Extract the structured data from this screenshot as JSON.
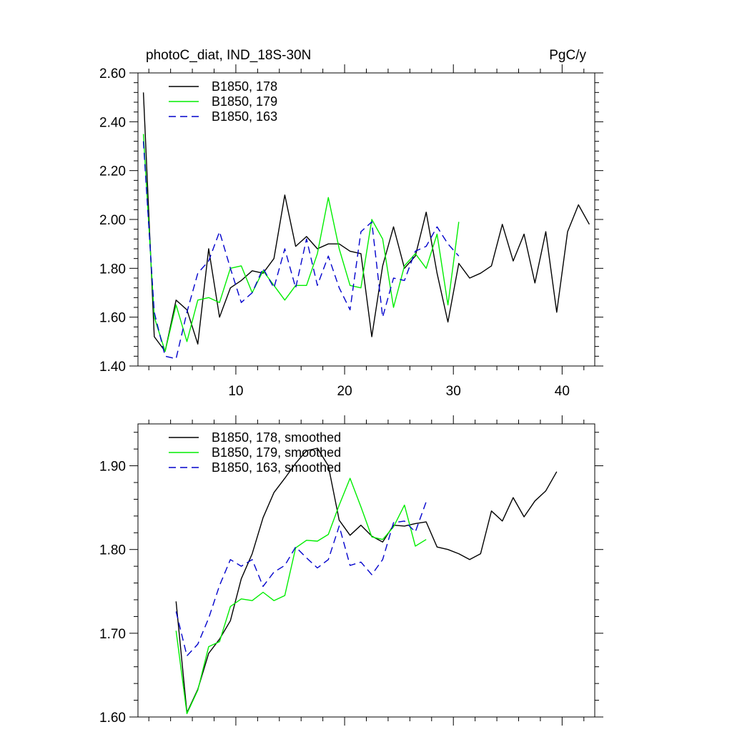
{
  "chart_data": [
    {
      "type": "line",
      "title_left": "photoC_diat, IND_18S-30N",
      "title_right": "PgC/y",
      "xlim": [
        1,
        43
      ],
      "ylim": [
        1.4,
        2.6
      ],
      "y_ticks": [
        1.4,
        1.6,
        1.8,
        2.0,
        2.2,
        2.4,
        2.6
      ],
      "y_tick_labels": [
        "1.40",
        "1.60",
        "1.80",
        "2.00",
        "2.20",
        "2.40",
        "2.60"
      ],
      "x_ticks": [
        10,
        20,
        30,
        40
      ],
      "x_tick_labels": [
        "10",
        "20",
        "30",
        "40"
      ],
      "legend_position": "top-left",
      "series": [
        {
          "name": "B1850, 178",
          "color": "#000000",
          "dash": "solid",
          "x": [
            1.5,
            2.5,
            3.5,
            4.5,
            5.5,
            6.5,
            7.5,
            8.5,
            9.5,
            10.5,
            11.5,
            12.5,
            13.5,
            14.5,
            15.5,
            16.5,
            17.5,
            18.5,
            19.5,
            20.5,
            21.5,
            22.5,
            23.5,
            24.5,
            25.5,
            26.5,
            27.5,
            28.5,
            29.5,
            30.5,
            31.5,
            32.5,
            33.5,
            34.5,
            35.5,
            36.5,
            37.5,
            38.5,
            39.5,
            40.5,
            41.5,
            42.5
          ],
          "values": [
            2.52,
            1.52,
            1.46,
            1.67,
            1.63,
            1.49,
            1.88,
            1.6,
            1.72,
            1.75,
            1.79,
            1.78,
            1.84,
            2.1,
            1.89,
            1.93,
            1.88,
            1.9,
            1.9,
            1.87,
            1.86,
            1.52,
            1.81,
            1.97,
            1.8,
            1.85,
            2.03,
            1.78,
            1.58,
            1.82,
            1.76,
            1.78,
            1.81,
            1.98,
            1.83,
            1.94,
            1.74,
            1.95,
            1.62,
            1.95,
            2.06,
            1.98
          ]
        },
        {
          "name": "B1850, 179",
          "color": "#00ee00",
          "dash": "solid",
          "x": [
            1.5,
            2.5,
            3.5,
            4.5,
            5.5,
            6.5,
            7.5,
            8.5,
            9.5,
            10.5,
            11.5,
            12.5,
            13.5,
            14.5,
            15.5,
            16.5,
            17.5,
            18.5,
            19.5,
            20.5,
            21.5,
            22.5,
            23.5,
            24.5,
            25.5,
            26.5,
            27.5,
            28.5,
            29.5,
            30.5
          ],
          "values": [
            2.35,
            1.6,
            1.46,
            1.65,
            1.5,
            1.67,
            1.68,
            1.66,
            1.8,
            1.81,
            1.7,
            1.79,
            1.73,
            1.67,
            1.73,
            1.73,
            1.86,
            2.09,
            1.88,
            1.73,
            1.72,
            2.0,
            1.92,
            1.64,
            1.81,
            1.86,
            1.8,
            1.94,
            1.65,
            1.99
          ]
        },
        {
          "name": "B1850, 163",
          "color": "#0000cc",
          "dash": "dashed",
          "x": [
            1.5,
            2.5,
            3.5,
            4.5,
            5.5,
            6.5,
            7.5,
            8.5,
            9.5,
            10.5,
            11.5,
            12.5,
            13.5,
            14.5,
            15.5,
            16.5,
            17.5,
            18.5,
            19.5,
            20.5,
            21.5,
            22.5,
            23.5,
            24.5,
            25.5,
            26.5,
            27.5,
            28.5,
            29.5,
            30.5
          ],
          "values": [
            2.32,
            1.62,
            1.44,
            1.43,
            1.62,
            1.78,
            1.83,
            1.95,
            1.8,
            1.66,
            1.7,
            1.8,
            1.72,
            1.88,
            1.72,
            1.92,
            1.73,
            1.85,
            1.72,
            1.63,
            1.95,
            1.99,
            1.6,
            1.76,
            1.75,
            1.87,
            1.89,
            1.97,
            1.9,
            1.85
          ]
        }
      ]
    },
    {
      "type": "line",
      "xlim": [
        1,
        43
      ],
      "ylim": [
        1.6,
        1.95
      ],
      "y_ticks": [
        1.6,
        1.7,
        1.8,
        1.9
      ],
      "y_tick_labels": [
        "1.60",
        "1.70",
        "1.80",
        "1.90"
      ],
      "x_ticks": [
        10,
        20,
        30,
        40
      ],
      "x_tick_labels": [],
      "legend_position": "top-left",
      "series": [
        {
          "name": "B1850, 178, smoothed",
          "color": "#000000",
          "dash": "solid",
          "x": [
            4.5,
            5.5,
            6.5,
            7.5,
            8.5,
            9.5,
            10.5,
            11.5,
            12.5,
            13.5,
            14.5,
            15.5,
            16.5,
            17.5,
            18.5,
            19.5,
            20.5,
            21.5,
            22.5,
            23.5,
            24.5,
            25.5,
            26.5,
            27.5,
            28.5,
            29.5,
            30.5,
            31.5,
            32.5,
            33.5,
            34.5,
            35.5,
            36.5,
            37.5,
            38.5,
            39.5
          ],
          "values": [
            1.738,
            1.605,
            1.633,
            1.676,
            1.693,
            1.715,
            1.765,
            1.795,
            1.838,
            1.868,
            1.885,
            1.903,
            1.918,
            1.921,
            1.9,
            1.835,
            1.817,
            1.829,
            1.816,
            1.809,
            1.829,
            1.828,
            1.831,
            1.833,
            1.803,
            1.8,
            1.795,
            1.788,
            1.795,
            1.846,
            1.834,
            1.862,
            1.839,
            1.858,
            1.87,
            1.893
          ]
        },
        {
          "name": "B1850, 179, smoothed",
          "color": "#00ee00",
          "dash": "solid",
          "x": [
            4.5,
            5.5,
            6.5,
            7.5,
            8.5,
            9.5,
            10.5,
            11.5,
            12.5,
            13.5,
            14.5,
            15.5,
            16.5,
            17.5,
            18.5,
            19.5,
            20.5,
            21.5,
            22.5,
            23.5,
            24.5,
            25.5,
            26.5,
            27.5
          ],
          "values": [
            1.703,
            1.604,
            1.632,
            1.684,
            1.69,
            1.732,
            1.741,
            1.739,
            1.749,
            1.739,
            1.745,
            1.802,
            1.811,
            1.81,
            1.818,
            1.853,
            1.885,
            1.851,
            1.815,
            1.812,
            1.827,
            1.853,
            1.804,
            1.812
          ]
        },
        {
          "name": "B1850, 163, smoothed",
          "color": "#0000cc",
          "dash": "dashed",
          "x": [
            4.5,
            5.5,
            6.5,
            7.5,
            8.5,
            9.5,
            10.5,
            11.5,
            12.5,
            13.5,
            14.5,
            15.5,
            16.5,
            17.5,
            18.5,
            19.5,
            20.5,
            21.5,
            22.5,
            23.5,
            24.5,
            25.5,
            26.5,
            27.5
          ],
          "values": [
            1.726,
            1.673,
            1.687,
            1.718,
            1.757,
            1.788,
            1.78,
            1.788,
            1.756,
            1.773,
            1.781,
            1.803,
            1.79,
            1.778,
            1.788,
            1.828,
            1.781,
            1.785,
            1.77,
            1.788,
            1.832,
            1.834,
            1.821,
            1.857
          ]
        }
      ]
    }
  ]
}
